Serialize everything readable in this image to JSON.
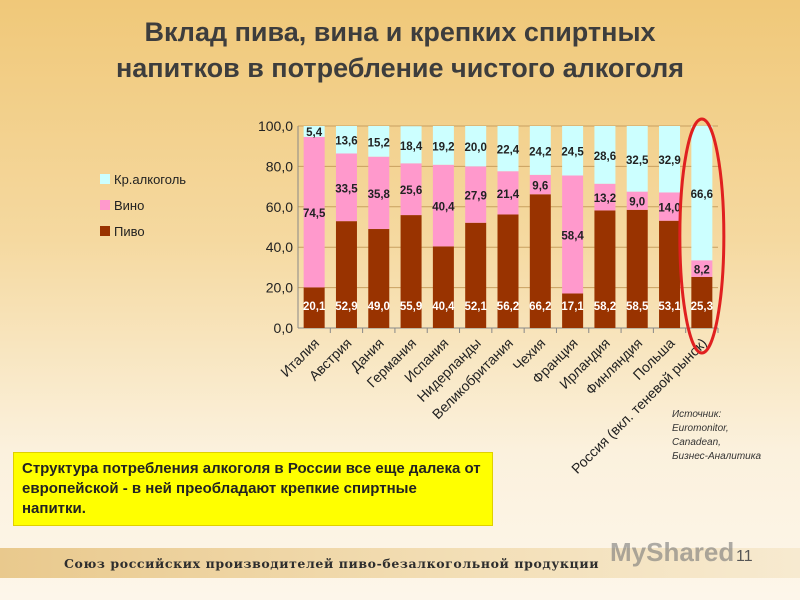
{
  "title_line1": "Вклад пива, вина и крепких спиртных",
  "title_line2": "напитков в потребление чистого алкоголя",
  "chart_data": {
    "type": "bar",
    "stacked": true,
    "categories": [
      "Италия",
      "Австрия",
      "Дания",
      "Германия",
      "Испания",
      "Нидерланды",
      "Великобритания",
      "Чехия",
      "Франция",
      "Ирландия",
      "Финляндия",
      "Польша",
      "Россия (вкл. теневой рынок)"
    ],
    "series": [
      {
        "name": "Пиво",
        "color": "#993300",
        "values": [
          20.1,
          52.9,
          49.0,
          55.9,
          40.4,
          52.1,
          56.2,
          66.2,
          17.1,
          58.2,
          58.5,
          53.1,
          25.3
        ],
        "labels": [
          "20,1",
          "52,9",
          "49,0",
          "55,9",
          "40,4",
          "52,1",
          "56,2",
          "66,2",
          "17,1",
          "58,2",
          "58,5",
          "53,1",
          "25,3"
        ]
      },
      {
        "name": "Вино",
        "color": "#ff99cc",
        "values": [
          74.5,
          33.5,
          35.8,
          25.6,
          40.4,
          27.9,
          21.4,
          9.6,
          58.4,
          13.2,
          9.0,
          14.0,
          8.2
        ],
        "labels": [
          "74,5",
          "33,5",
          "35,8",
          "25,6",
          "40,4",
          "27,9",
          "21,4",
          "9,6",
          "58,4",
          "13,2",
          "9,0",
          "14,0",
          "8,2"
        ]
      },
      {
        "name": "Кр.алкоголь",
        "color": "#ccffff",
        "values": [
          5.4,
          13.6,
          15.2,
          18.4,
          19.2,
          20.0,
          22.4,
          24.2,
          24.5,
          28.6,
          32.5,
          32.9,
          66.6
        ],
        "labels": [
          "5,4",
          "13,6",
          "15,2",
          "18,4",
          "19,2",
          "20,0",
          "22,4",
          "24,2",
          "24,5",
          "28,6",
          "32,5",
          "32,9",
          "66,6"
        ]
      }
    ],
    "yticks": [
      "0,0",
      "20,0",
      "40,0",
      "60,0",
      "80,0",
      "100,0"
    ],
    "ylim": [
      0,
      100
    ],
    "legend": "left",
    "highlight": "Россия (вкл. теневой рынок)",
    "highlight_color": "#e02020"
  },
  "note": "Структура потребления алкоголя в России все еще далека от европейской - в ней преобладают крепкие спиртные напитки.",
  "source": [
    "Источник:",
    "Euromonitor,",
    "Canadean,",
    "Бизнес-Аналитика"
  ],
  "footer": "Союз российских производителей пиво-безалкогольной продукции",
  "watermark": "MyShared",
  "page_number": "11"
}
